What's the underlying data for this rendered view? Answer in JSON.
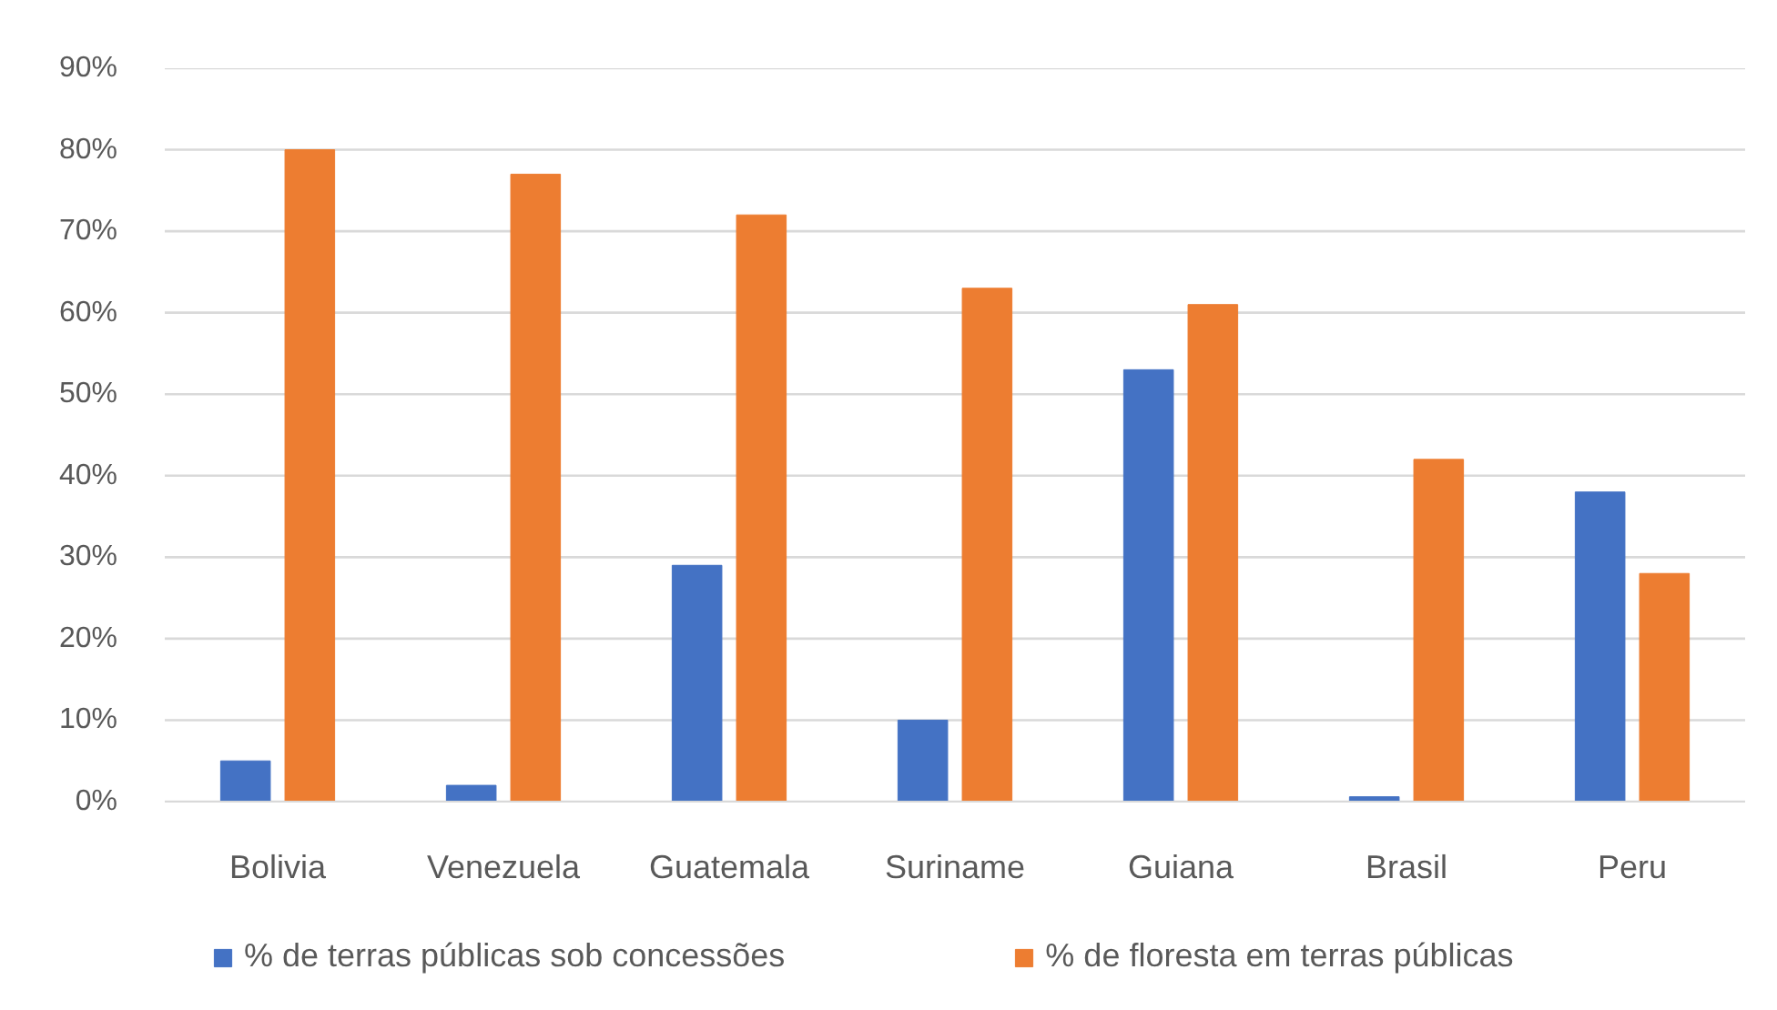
{
  "chart_data": {
    "type": "bar",
    "categories": [
      "Bolivia",
      "Venezuela",
      "Guatemala",
      "Suriname",
      "Guiana",
      "Brasil",
      "Peru"
    ],
    "series": [
      {
        "name": "% de terras públicas sob concessões",
        "color": "#4472c4",
        "values": [
          5,
          2,
          29,
          10,
          53,
          0.6,
          38
        ]
      },
      {
        "name": "% de floresta em terras públicas",
        "color": "#ed7d31",
        "values": [
          80,
          77,
          72,
          63,
          61,
          42,
          28
        ]
      }
    ],
    "ylim": [
      0,
      90
    ],
    "yticks": [
      {
        "value": 0,
        "label": "0%"
      },
      {
        "value": 10,
        "label": "10%"
      },
      {
        "value": 20,
        "label": "20%"
      },
      {
        "value": 30,
        "label": "30%"
      },
      {
        "value": 40,
        "label": "40%"
      },
      {
        "value": 50,
        "label": "50%"
      },
      {
        "value": 60,
        "label": "60%"
      },
      {
        "value": 70,
        "label": "70%"
      },
      {
        "value": 80,
        "label": "80%"
      },
      {
        "value": 90,
        "label": "90%"
      }
    ],
    "grid": "y",
    "legend": "bottom"
  }
}
